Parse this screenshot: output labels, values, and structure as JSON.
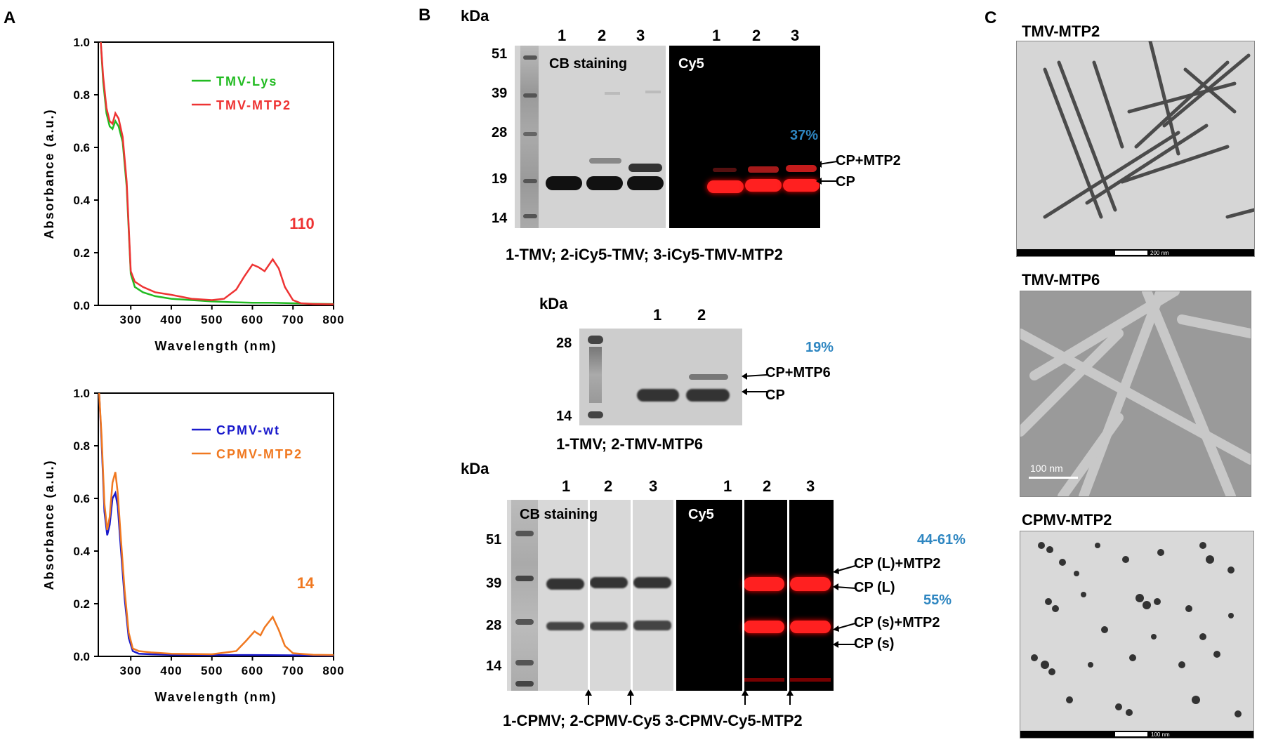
{
  "panels": {
    "A": "A",
    "B": "B",
    "C": "C"
  },
  "chart_data": [
    {
      "type": "line",
      "xlabel": "Wavelength (nm)",
      "ylabel": "Absorbance (a.u.)",
      "xlim": [
        220,
        800
      ],
      "ylim": [
        0,
        1.0
      ],
      "xticks": [
        300,
        400,
        500,
        600,
        700,
        800
      ],
      "yticks": [
        0.0,
        0.2,
        0.4,
        0.6,
        0.8,
        1.0
      ],
      "annotation": "110",
      "series": [
        {
          "name": "TMV-Lys",
          "color": "#22bb22",
          "x": [
            226,
            232,
            240,
            248,
            255,
            262,
            270,
            280,
            290,
            300,
            310,
            330,
            360,
            400,
            450,
            500,
            550,
            600,
            650,
            700,
            750,
            800
          ],
          "y": [
            1.0,
            0.85,
            0.73,
            0.68,
            0.67,
            0.7,
            0.68,
            0.62,
            0.45,
            0.12,
            0.07,
            0.05,
            0.035,
            0.025,
            0.02,
            0.015,
            0.012,
            0.01,
            0.01,
            0.008,
            0.006,
            0.005
          ]
        },
        {
          "name": "TMV-MTP2",
          "color": "#ee3333",
          "x": [
            226,
            232,
            240,
            248,
            255,
            262,
            270,
            280,
            290,
            300,
            310,
            330,
            360,
            400,
            450,
            500,
            530,
            560,
            580,
            600,
            615,
            630,
            650,
            665,
            680,
            700,
            720,
            750,
            800
          ],
          "y": [
            1.0,
            0.87,
            0.75,
            0.7,
            0.69,
            0.73,
            0.71,
            0.64,
            0.47,
            0.13,
            0.09,
            0.07,
            0.05,
            0.04,
            0.025,
            0.02,
            0.025,
            0.06,
            0.11,
            0.155,
            0.145,
            0.13,
            0.175,
            0.14,
            0.07,
            0.02,
            0.008,
            0.005,
            0.004
          ]
        }
      ]
    },
    {
      "type": "line",
      "xlabel": "Wavelength (nm)",
      "ylabel": "Absorbance (a.u.)",
      "xlim": [
        220,
        800
      ],
      "ylim": [
        0,
        1.0
      ],
      "xticks": [
        300,
        400,
        500,
        600,
        700,
        800
      ],
      "yticks": [
        0.0,
        0.2,
        0.4,
        0.6,
        0.8,
        1.0
      ],
      "annotation": "14",
      "series": [
        {
          "name": "CPMV-wt",
          "color": "#1a1acc",
          "x": [
            222,
            228,
            235,
            242,
            248,
            255,
            262,
            268,
            275,
            285,
            295,
            305,
            320,
            350,
            400,
            500,
            600,
            700,
            800
          ],
          "y": [
            1.0,
            0.82,
            0.55,
            0.46,
            0.5,
            0.6,
            0.62,
            0.57,
            0.42,
            0.22,
            0.07,
            0.02,
            0.01,
            0.008,
            0.006,
            0.005,
            0.005,
            0.004,
            0.003
          ]
        },
        {
          "name": "CPMV-MTP2",
          "color": "#f07820",
          "x": [
            222,
            228,
            235,
            242,
            248,
            255,
            262,
            268,
            275,
            285,
            295,
            305,
            320,
            350,
            400,
            500,
            560,
            585,
            605,
            620,
            630,
            650,
            665,
            680,
            700,
            750,
            800
          ],
          "y": [
            1.0,
            0.84,
            0.58,
            0.48,
            0.53,
            0.66,
            0.7,
            0.62,
            0.46,
            0.25,
            0.09,
            0.03,
            0.02,
            0.015,
            0.01,
            0.008,
            0.02,
            0.06,
            0.095,
            0.08,
            0.11,
            0.15,
            0.1,
            0.04,
            0.012,
            0.006,
            0.005
          ]
        }
      ]
    }
  ],
  "gel1": {
    "kda": "kDa",
    "lanes": [
      "1",
      "2",
      "3"
    ],
    "markers": [
      "51",
      "39",
      "28",
      "19",
      "14"
    ],
    "left_label": "CB staining",
    "right_label": "Cy5",
    "pct": "37%",
    "band_upper": "CP+MTP2",
    "band_lower": "CP",
    "caption": "1-TMV; 2-iCy5-TMV; 3-iCy5-TMV-MTP2"
  },
  "gel2": {
    "kda": "kDa",
    "lanes": [
      "1",
      "2"
    ],
    "markers": [
      "28",
      "14"
    ],
    "pct": "19%",
    "band_upper": "CP+MTP6",
    "band_lower": "CP",
    "caption": "1-TMV; 2-TMV-MTP6"
  },
  "gel3": {
    "kda": "kDa",
    "lanes": [
      "1",
      "2",
      "3"
    ],
    "markers": [
      "51",
      "39",
      "28",
      "14"
    ],
    "left_label": "CB staining",
    "right_label": "Cy5",
    "pct1": "44-61%",
    "pct2": "55%",
    "bands": [
      "CP (L)+MTP2",
      "CP (L)",
      "CP (s)+MTP2",
      "CP (s)"
    ],
    "caption": "1-CPMV; 2-CPMV-Cy5 3-CPMV-Cy5-MTP2"
  },
  "em": {
    "label1": "TMV-MTP2",
    "label2": "TMV-MTP6",
    "label3": "CPMV-MTP2",
    "scale1": "200 nm",
    "scale2": "100 nm",
    "scale3": "100 nm"
  }
}
